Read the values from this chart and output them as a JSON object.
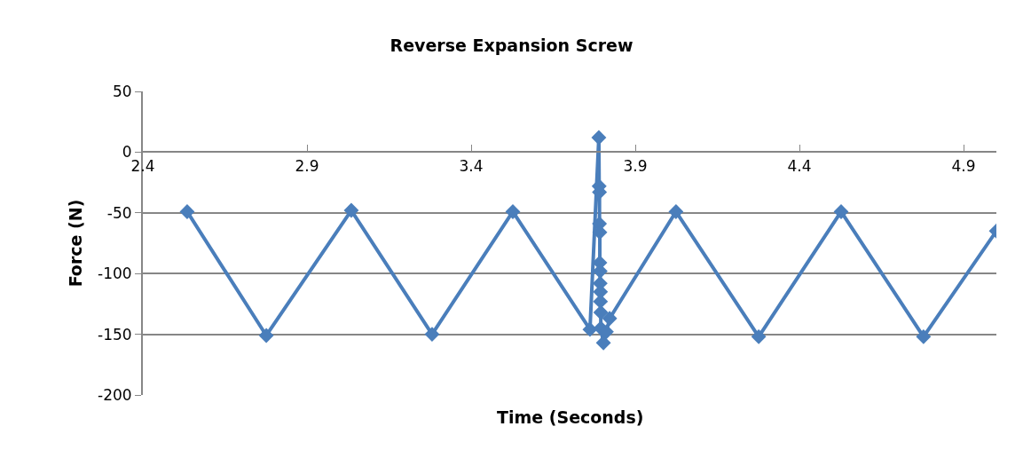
{
  "chart_data": {
    "type": "line",
    "title": "Reverse Expansion Screw",
    "xlabel": "Time (Seconds)",
    "ylabel": "Force (N)",
    "xlim": [
      2.4,
      5.0
    ],
    "xticks": [
      2.4,
      2.9,
      3.4,
      3.9,
      4.4,
      4.9
    ],
    "ylim": [
      -200,
      50
    ],
    "yticks": [
      -200,
      -150,
      -100,
      -50,
      0,
      50
    ],
    "grid": "y",
    "marker": "diamond",
    "line_style": "solid",
    "series": [
      {
        "color": "#4a7ebb",
        "x": [
          2.535,
          2.776,
          3.035,
          3.281,
          3.527,
          3.762,
          3.789,
          3.79,
          3.791,
          3.791,
          3.792,
          3.792,
          3.793,
          3.793,
          3.794,
          3.794,
          3.795,
          3.795,
          3.803,
          3.812,
          3.822,
          4.024,
          4.276,
          4.527,
          4.778,
          5.0
        ],
        "values": [
          -49,
          -151,
          -48,
          -150,
          -49,
          -146,
          12,
          -28,
          -33,
          -59,
          -66,
          -91,
          -98,
          -108,
          -115,
          -123,
          -132,
          -145,
          -157,
          -148,
          -137,
          -49,
          -152,
          -49,
          -152,
          -65
        ]
      }
    ]
  }
}
